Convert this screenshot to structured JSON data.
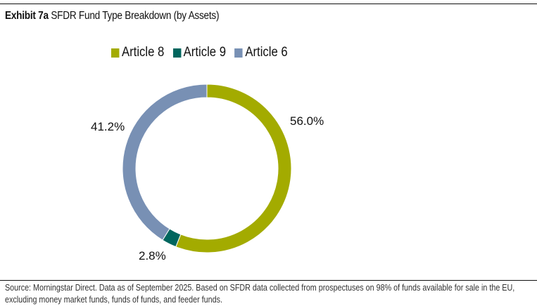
{
  "title": {
    "bold": "Exhibit 7a",
    "text": "SFDR Fund Type Breakdown (by Assets)"
  },
  "chart_data": {
    "type": "pie",
    "variant": "donut",
    "title": "SFDR Fund Type Breakdown (by Assets)",
    "categories": [
      "Article 8",
      "Article 9",
      "Article 6"
    ],
    "values": [
      56.0,
      2.8,
      41.2
    ],
    "labels": [
      "56.0%",
      "2.8%",
      "41.2%"
    ],
    "colors": [
      "#a3ab00",
      "#00665e",
      "#7890b4"
    ],
    "legend_position": "top"
  },
  "source": [
    "Source: Morningstar Direct. Data as of September 2025. Based on SFDR data collected from prospectuses on 98% of funds available for sale in the EU,",
    "excluding money market funds, funds of funds, and feeder funds."
  ]
}
